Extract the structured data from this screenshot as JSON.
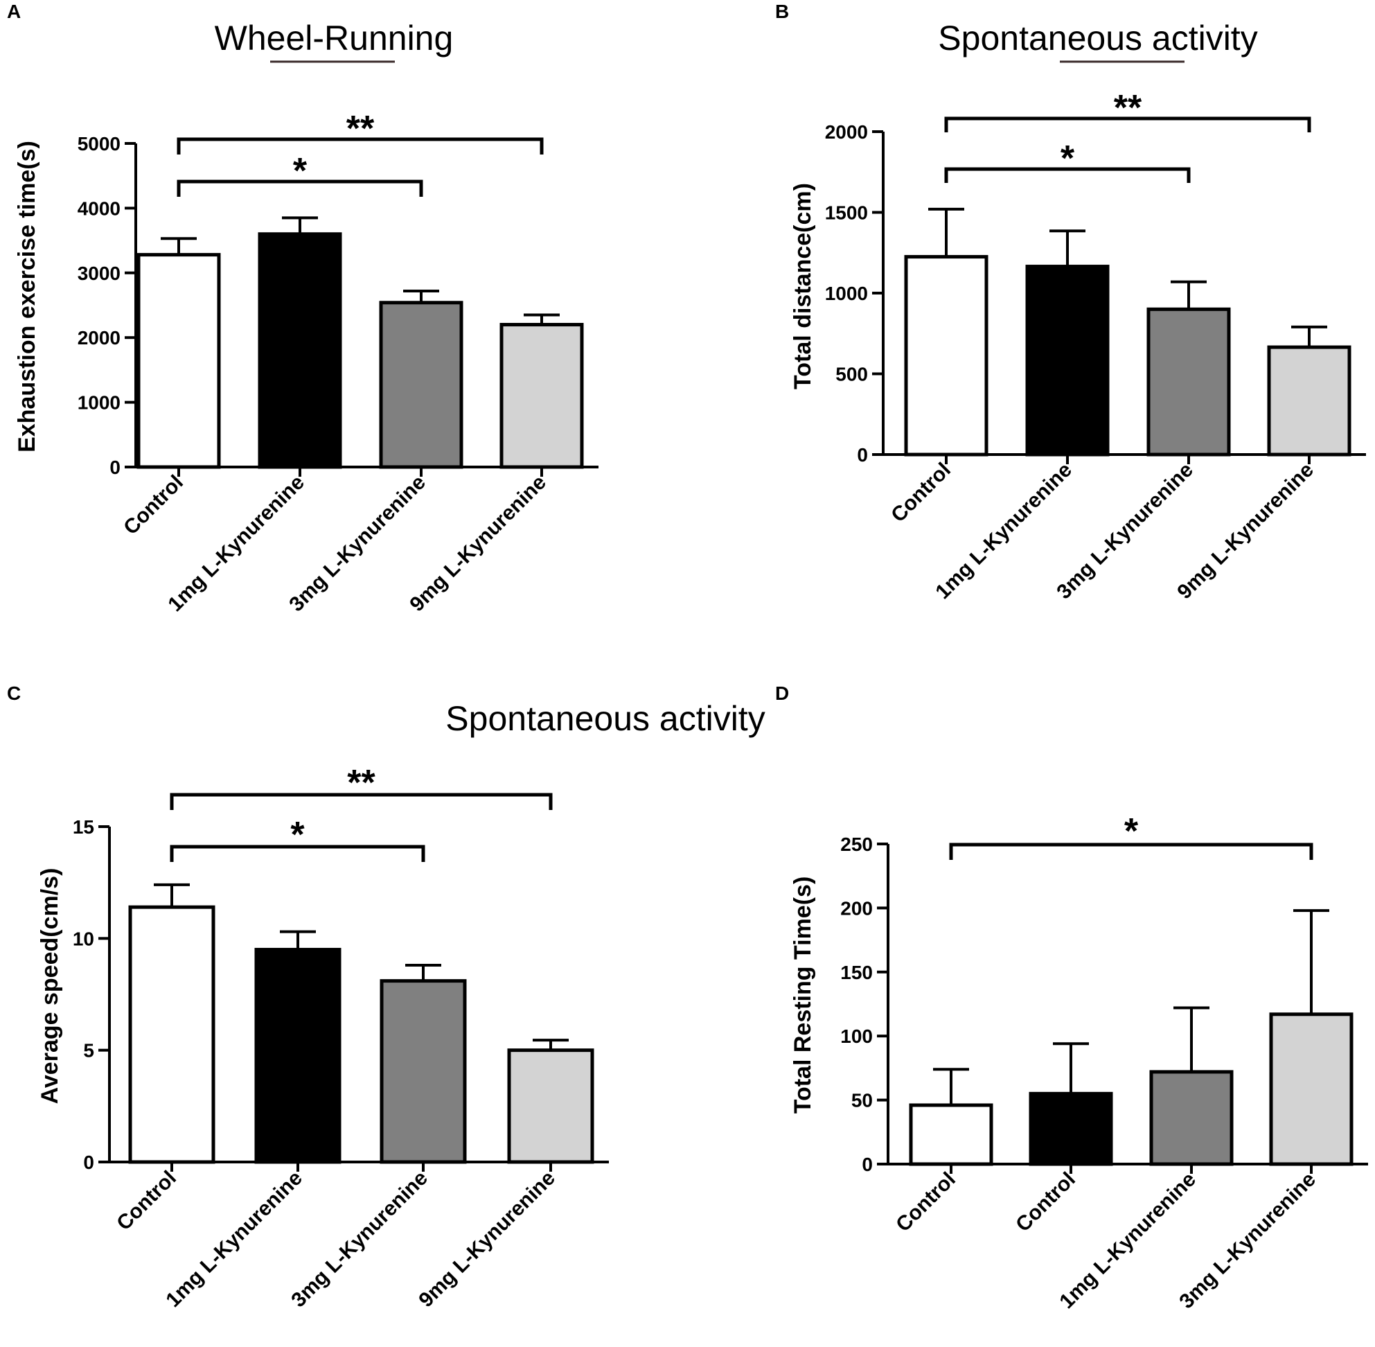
{
  "chart_data": [
    {
      "panel": "A",
      "type": "bar",
      "title": "Wheel-Running",
      "xlabel": "",
      "ylabel": "Exhaustion exercise time(s)",
      "ylim": [
        0,
        5000
      ],
      "yticks": [
        0,
        1000,
        2000,
        3000,
        4000,
        5000
      ],
      "categories": [
        "Control",
        "1mg L-Kynurenine",
        "3mg L-Kynurenine",
        "9mg L-Kynurenine"
      ],
      "values": [
        3280,
        3600,
        2540,
        2200
      ],
      "errors": [
        250,
        250,
        180,
        150
      ],
      "fills": [
        "#ffffff",
        "#000000",
        "#808080",
        "#d3d3d3"
      ],
      "significance": [
        {
          "from": 0,
          "to": 2,
          "label": "*"
        },
        {
          "from": 0,
          "to": 3,
          "label": "**"
        }
      ]
    },
    {
      "panel": "B",
      "type": "bar",
      "title": "Spontaneous activity",
      "xlabel": "",
      "ylabel": "Total distance(cm)",
      "ylim": [
        0,
        2000
      ],
      "yticks": [
        0,
        500,
        1000,
        1500,
        2000
      ],
      "categories": [
        "Control",
        "1mg L-Kynurenine",
        "3mg L-Kynurenine",
        "9mg L-Kynurenine"
      ],
      "values": [
        1225,
        1165,
        900,
        665
      ],
      "errors": [
        295,
        220,
        170,
        125
      ],
      "fills": [
        "#ffffff",
        "#000000",
        "#808080",
        "#d3d3d3"
      ],
      "significance": [
        {
          "from": 0,
          "to": 2,
          "label": "*"
        },
        {
          "from": 0,
          "to": 3,
          "label": "**"
        }
      ]
    },
    {
      "panel": "C",
      "type": "bar",
      "title": "Spontaneous activity",
      "xlabel": "",
      "ylabel": "Average speed(cm/s)",
      "ylim": [
        0,
        15
      ],
      "yticks": [
        0,
        5,
        10,
        15
      ],
      "categories": [
        "Control",
        "1mg L-Kynurenine",
        "3mg L-Kynurenine",
        "9mg L-Kynurenine"
      ],
      "values": [
        11.4,
        9.5,
        8.1,
        5.0
      ],
      "errors": [
        1.0,
        0.8,
        0.7,
        0.45
      ],
      "fills": [
        "#ffffff",
        "#000000",
        "#808080",
        "#d3d3d3"
      ],
      "significance": [
        {
          "from": 0,
          "to": 2,
          "label": "*"
        },
        {
          "from": 0,
          "to": 3,
          "label": "**"
        }
      ]
    },
    {
      "panel": "D",
      "type": "bar",
      "title": "",
      "xlabel": "",
      "ylabel": "Total Resting Time(s)",
      "ylim": [
        0,
        250
      ],
      "yticks": [
        0,
        50,
        100,
        150,
        200,
        250
      ],
      "categories": [
        "Control",
        "Control",
        "1mg L-Kynurenine",
        "3mg L-Kynurenine"
      ],
      "values": [
        46,
        55,
        72,
        117
      ],
      "errors": [
        28,
        39,
        50,
        81
      ],
      "fills": [
        "#ffffff",
        "#000000",
        "#808080",
        "#d3d3d3"
      ],
      "significance": [
        {
          "from": 0,
          "to": 3,
          "label": "*"
        }
      ]
    }
  ]
}
